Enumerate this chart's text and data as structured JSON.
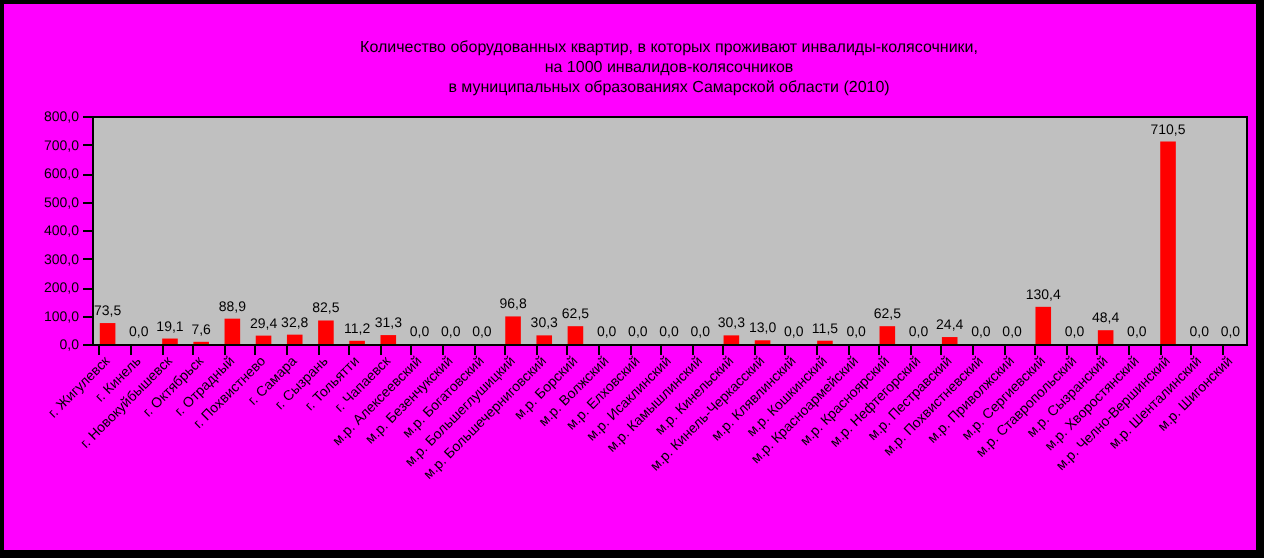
{
  "chart_data": {
    "type": "bar",
    "title": "Количество оборудованных квартир, в которых проживают инвалиды-колясочники,\nна 1000 инвалидов-колясочников\nв муниципальных образованиях Самарской области (2010)",
    "categories": [
      "г. Жигулевск",
      "г. Кинель",
      "г. Новокуйбышевск",
      "г. Октябрьск",
      "г. Отрадный",
      "г. Похвистнево",
      "г. Самара",
      "г. Сызрань",
      "г. Тольятти",
      "г. Чапаевск",
      "м.р. Алексеевский",
      "м.р. Безенчукский",
      "м.р. Богатовский",
      "м.р. Большеглушицкий",
      "м.р. Большечерниговский",
      "м.р. Борский",
      "м.р. Волжский",
      "м.р. Елховский",
      "м.р. Исаклинский",
      "м.р. Камышлинский",
      "м.р. Кинельский",
      "м.р. Кинель-Черкасский",
      "м.р. Клявлинский",
      "м.р. Кошкинский",
      "м.р. Красноармейский",
      "м.р. Красноярский",
      "м.р. Нефтегорский",
      "м.р. Пестравский",
      "м.р. Похвистневский",
      "м.р. Приволжский",
      "м.р. Сергиевский",
      "м.р. Ставропольский",
      "м.р. Сызранский",
      "м.р. Хворостянский",
      "м.р. Челно-Вершинский",
      "м.р. Шенталинский",
      "м.р. Шигонский"
    ],
    "values": [
      73.5,
      0,
      19.1,
      7.6,
      88.9,
      29.4,
      32.8,
      82.5,
      11.2,
      31.3,
      0,
      0,
      0,
      96.8,
      30.3,
      62.5,
      0,
      0,
      0,
      0,
      30.3,
      13.0,
      0,
      11.5,
      0,
      62.5,
      0,
      24.4,
      0,
      0,
      130.4,
      0,
      48.4,
      0,
      710.5,
      0,
      0
    ],
    "value_labels": [
      "73,5",
      "0,0",
      "19,1",
      "7,6",
      "88,9",
      "29,4",
      "32,8",
      "82,5",
      "11,2",
      "31,3",
      "0,0",
      "0,0",
      "0,0",
      "96,8",
      "30,3",
      "62,5",
      "0,0",
      "0,0",
      "0,0",
      "0,0",
      "30,3",
      "13,0",
      "0,0",
      "11,5",
      "0,0",
      "62,5",
      "0,0",
      "24,4",
      "0,0",
      "0,0",
      "130,4",
      "0,0",
      "48,4",
      "0,0",
      "710,5",
      "0,0",
      "0,0"
    ],
    "color": "#ff0000",
    "ylim": [
      0,
      800
    ],
    "yticks": [
      {
        "value": 0,
        "label": "0,0"
      },
      {
        "value": 100,
        "label": "100,0"
      },
      {
        "value": 200,
        "label": "200,0"
      },
      {
        "value": 300,
        "label": "300,0"
      },
      {
        "value": 400,
        "label": "400,0"
      },
      {
        "value": 500,
        "label": "500,0"
      },
      {
        "value": 600,
        "label": "600,0"
      },
      {
        "value": 700,
        "label": "700,0"
      },
      {
        "value": 800,
        "label": "800,0"
      }
    ],
    "grid": false
  }
}
